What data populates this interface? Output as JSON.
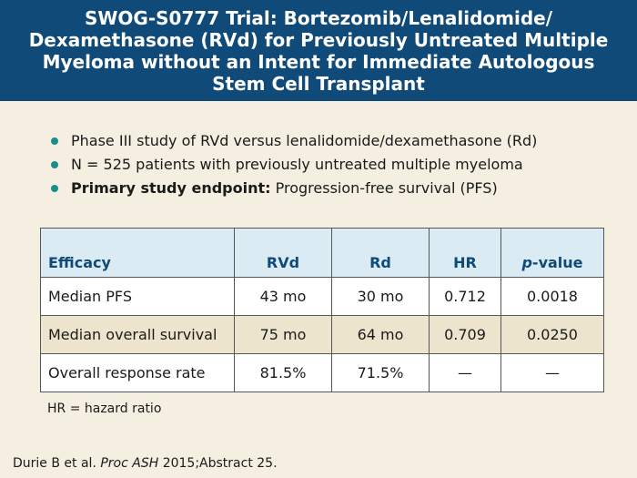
{
  "title": "SWOG-S0777 Trial: Bortezomib/Lenalidomide/ Dexamethasone (RVd) for Previously Untreated Multiple Myeloma without an Intent for Immediate Autologous Stem Cell Transplant",
  "bullets": [
    {
      "bold": "",
      "text": "Phase III study of RVd versus lenalidomide/dexamethasone (Rd)"
    },
    {
      "bold": "",
      "text": "N = 525 patients with previously untreated multiple myeloma"
    },
    {
      "bold": "Primary study endpoint:",
      "text": "Progression-free survival (PFS)"
    }
  ],
  "table": {
    "headers": {
      "efficacy": "Efficacy",
      "rvd": "RVd",
      "rd": "Rd",
      "hr": "HR",
      "p_italic": "p",
      "p_rest": "-value"
    },
    "rows": [
      {
        "label": "Median PFS",
        "rvd": "43 mo",
        "rd": "30 mo",
        "hr": "0.712",
        "p": "0.0018"
      },
      {
        "label": "Median overall survival",
        "rvd": "75 mo",
        "rd": "64 mo",
        "hr": "0.709",
        "p": "0.0250"
      },
      {
        "label": "Overall response rate",
        "rvd": "81.5%",
        "rd": "71.5%",
        "hr": "—",
        "p": "—"
      }
    ]
  },
  "note": "HR = hazard ratio",
  "citation": {
    "authors": "Durie B et al. ",
    "journal": "Proc ASH",
    "rest": " 2015;Abstract 25."
  },
  "colors": {
    "title_bar": "#0f4a78",
    "bullet": "#1a8f8a",
    "header_bg": "#dbebf3",
    "alt_row": "#ede4cd",
    "background": "#f4efe1"
  }
}
